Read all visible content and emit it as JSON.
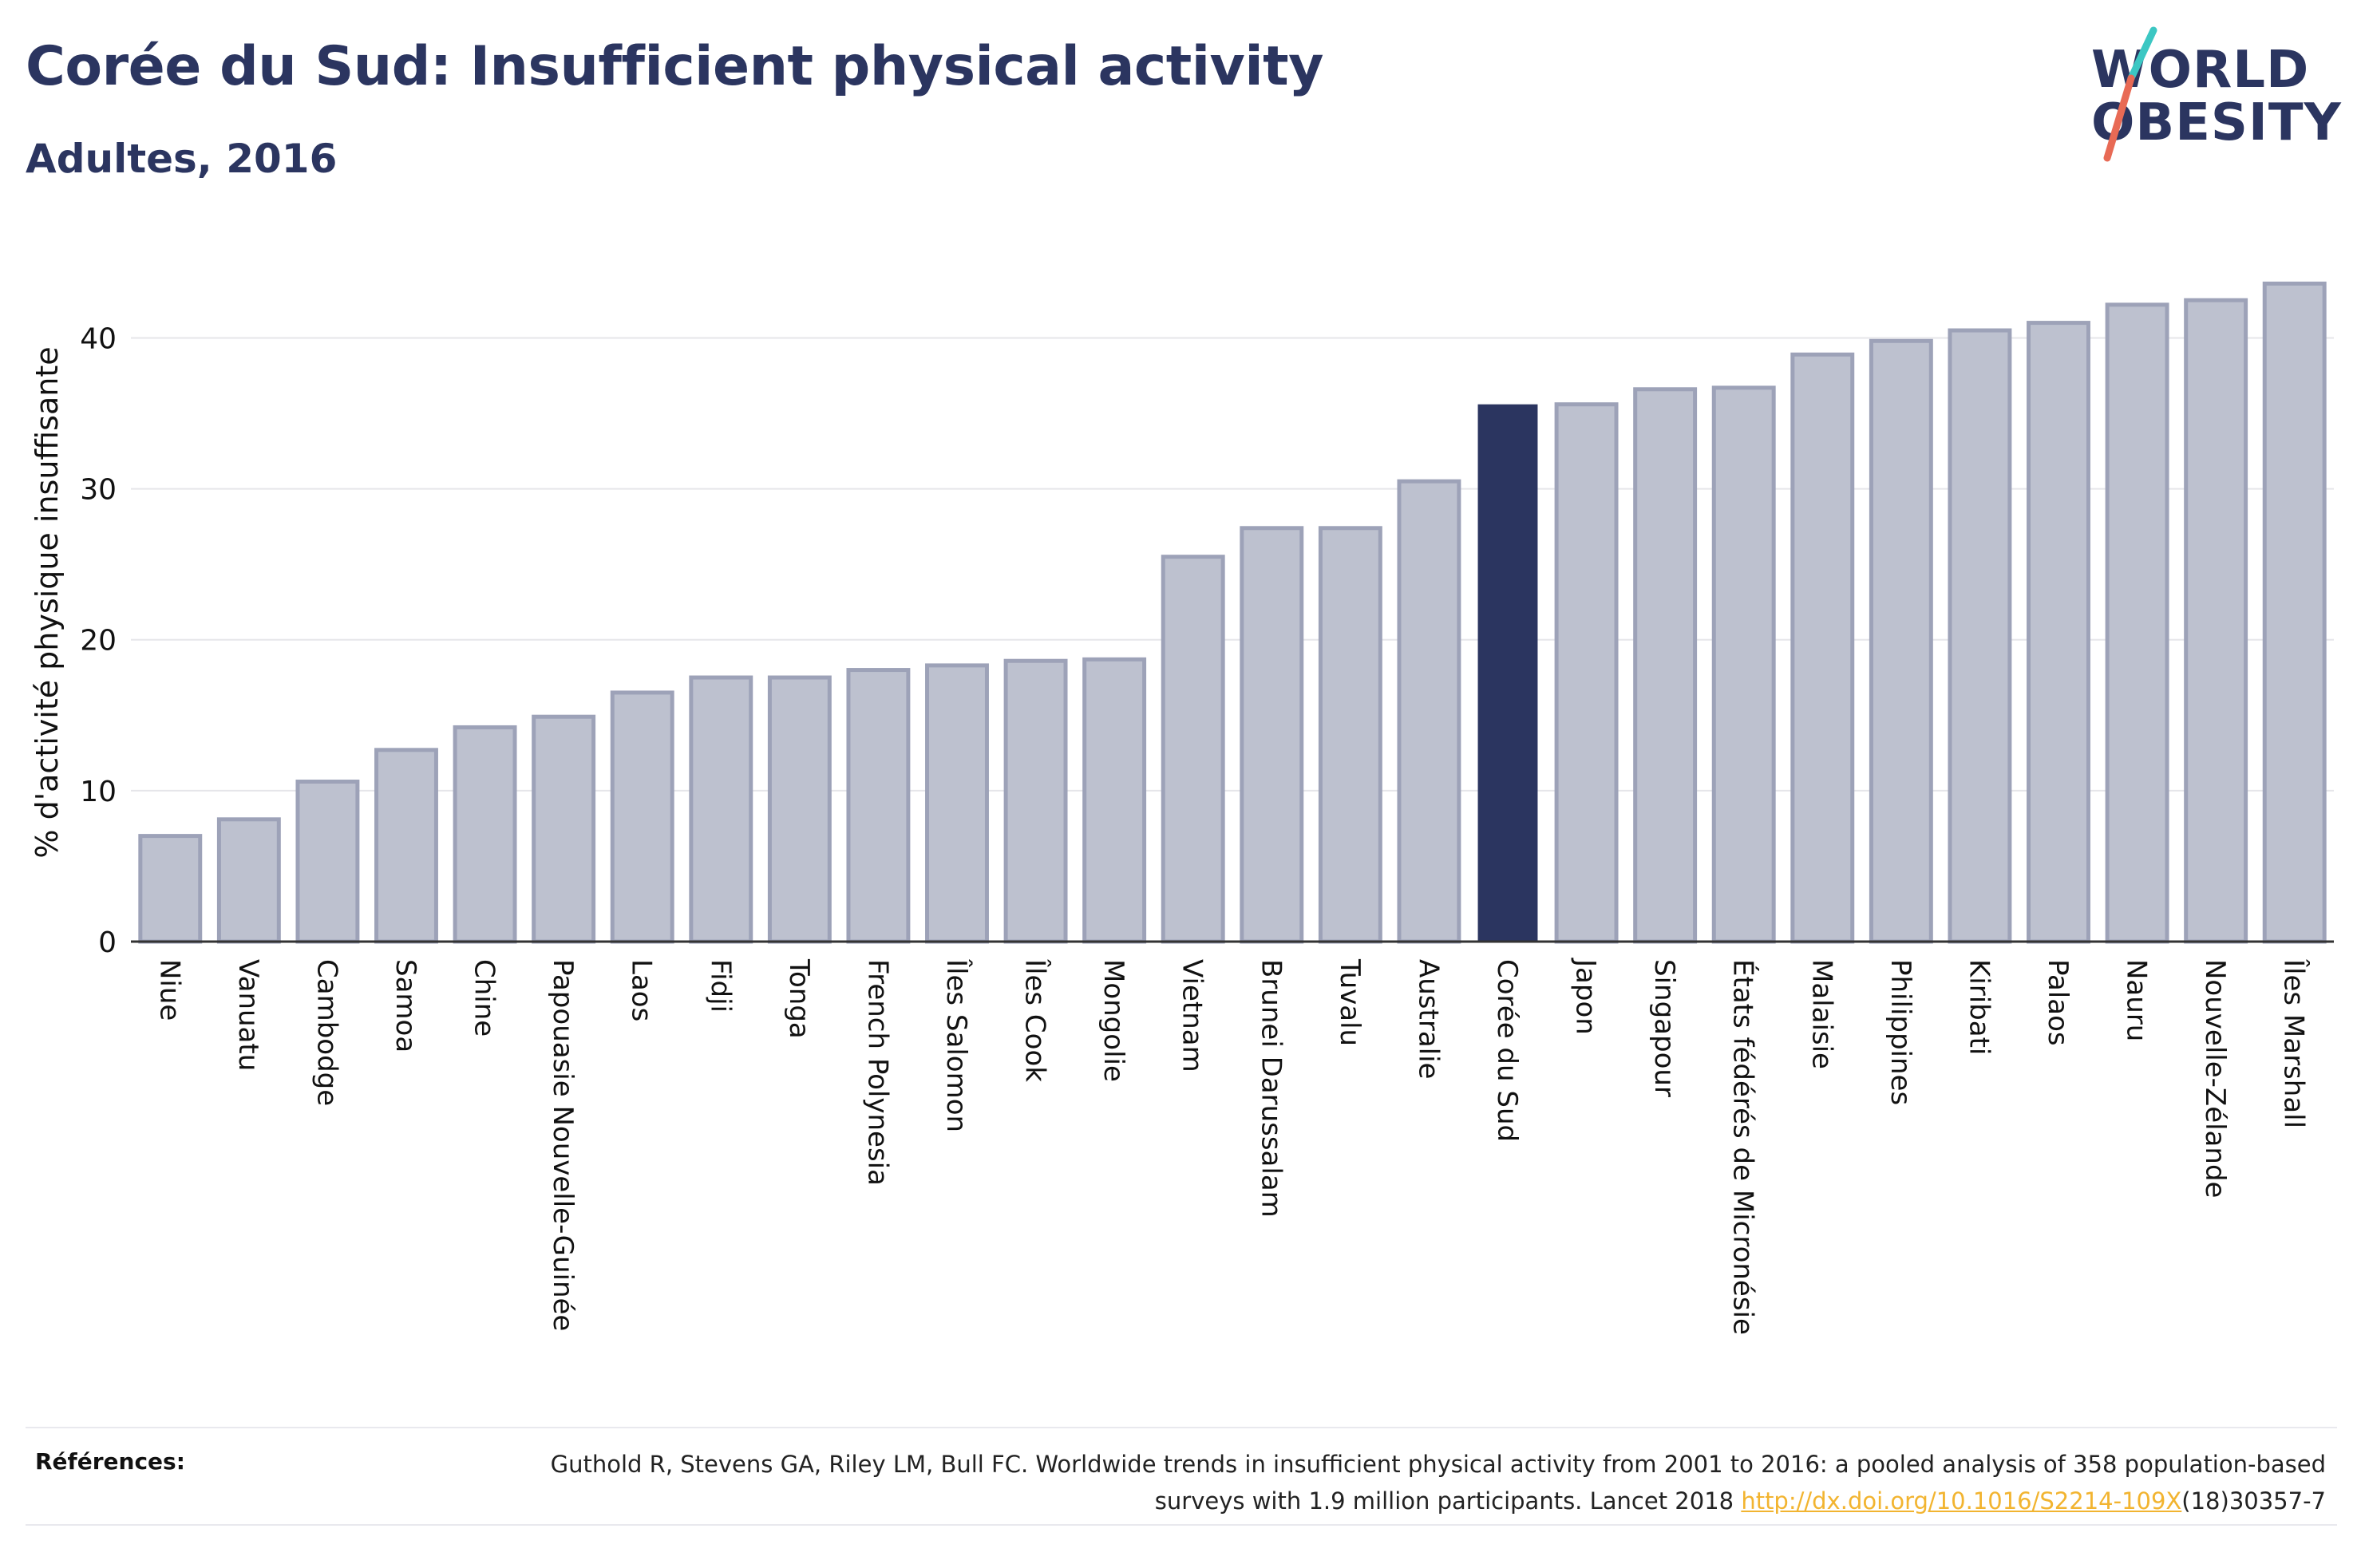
{
  "header": {
    "title": "Corée du Sud: Insufficient physical activity",
    "subtitle": "Adultes, 2016"
  },
  "logo": {
    "line1": "WORLD",
    "line2": "OBESITY"
  },
  "colors": {
    "highlight_bar": "#2b3560",
    "bar_fill": "#bdc1cf",
    "bar_stroke": "#9da2b8",
    "grid": "#e6e6ea",
    "logo_slash_teal": "#3cc7c3",
    "logo_slash_coral": "#e86a55",
    "link": "#f2b430"
  },
  "chart_data": {
    "type": "bar",
    "categories": [
      "Niue",
      "Vanuatu",
      "Cambodge",
      "Samoa",
      "Chine",
      "Papouasie Nouvelle-Guinée",
      "Laos",
      "Fidji",
      "Tonga",
      "French Polynesia",
      "Îles Salomon",
      "Îles Cook",
      "Mongolie",
      "Vietnam",
      "Brunei Darussalam",
      "Tuvalu",
      "Australie",
      "Corée du Sud",
      "Japon",
      "Singapour",
      "États fédérés de Micronésie",
      "Malaisie",
      "Philippines",
      "Kiribati",
      "Palaos",
      "Nauru",
      "Nouvelle-Zélande",
      "Îles Marshall"
    ],
    "values": [
      7.0,
      8.1,
      10.6,
      12.7,
      14.2,
      14.9,
      16.5,
      17.5,
      17.5,
      18.0,
      18.3,
      18.6,
      18.7,
      25.5,
      27.4,
      27.4,
      30.5,
      35.6,
      35.6,
      36.6,
      36.7,
      38.9,
      39.8,
      40.5,
      41.0,
      42.2,
      42.5,
      43.6
    ],
    "highlight": "Corée du Sud",
    "ylabel": "% d'activité physique insuffisante",
    "xlabel": "",
    "ylim": [
      0,
      46
    ],
    "yticks": [
      0,
      10,
      20,
      30,
      40
    ],
    "grid": true,
    "legend": "none"
  },
  "references": {
    "label": "Références:",
    "text_before": "Guthold R, Stevens GA, Riley LM, Bull FC. Worldwide trends in insufficient physical activity from 2001 to 2016: a pooled analysis of 358 population-based surveys with 1.9 million participants. Lancet 2018 ",
    "link_text": "http://dx.doi.org/10.1016/S2214-109X",
    "text_after": "(18)30357-7"
  }
}
